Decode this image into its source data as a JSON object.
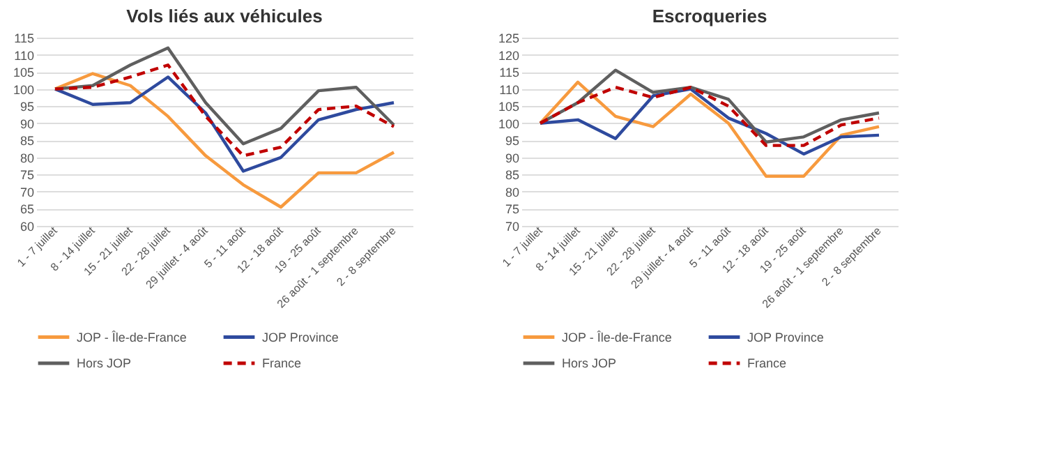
{
  "chart_data": [
    {
      "type": "line",
      "title": "Vols liés aux véhicules",
      "categories": [
        "1 - 7 juillet",
        "8 - 14 juillet",
        "15 - 21 juillet",
        "22 - 28 juillet",
        "29 juillet - 4 août",
        "5 - 11 août",
        "12 - 18 août",
        "19 - 25 août",
        "26 août - 1 septembre",
        "2 - 8 septembre"
      ],
      "ylim": [
        60,
        115
      ],
      "yticks": [
        60,
        65,
        70,
        75,
        80,
        85,
        90,
        95,
        100,
        105,
        110,
        115
      ],
      "grid": "y",
      "legend": "bottom",
      "marker": "none",
      "series": [
        {
          "name": "JOP - Île-de-France",
          "color": "#f79a3e",
          "line_style": "solid",
          "values": [
            100,
            104.5,
            101,
            92,
            80.5,
            72,
            65.5,
            75.5,
            75.5,
            81.5
          ]
        },
        {
          "name": "JOP Province",
          "color": "#2e4a9e",
          "line_style": "solid",
          "values": [
            100,
            95.5,
            96,
            103.5,
            93,
            76,
            80,
            91,
            94,
            96
          ]
        },
        {
          "name": "Hors JOP",
          "color": "#5f5f5f",
          "line_style": "solid",
          "values": [
            100,
            101,
            107,
            112,
            96,
            84,
            88.5,
            99.5,
            100.5,
            89.5
          ]
        },
        {
          "name": "France",
          "color": "#c00000",
          "line_style": "dashed",
          "values": [
            100,
            100.5,
            103.5,
            107,
            92,
            80.5,
            83,
            94,
            95,
            89
          ]
        }
      ]
    },
    {
      "type": "line",
      "title": "Escroqueries",
      "categories": [
        "1 - 7 juillet",
        "8 - 14 juillet",
        "15 - 21 juillet",
        "22 - 28 juillet",
        "29 juillet - 4 août",
        "5 - 11 août",
        "12 - 18 août",
        "19 - 25 août",
        "26 août - 1 septembre",
        "2 - 8 septembre"
      ],
      "ylim": [
        70,
        125
      ],
      "yticks": [
        70,
        75,
        80,
        85,
        90,
        95,
        100,
        105,
        110,
        115,
        120,
        125
      ],
      "grid": "y",
      "legend": "bottom",
      "marker": "none",
      "series": [
        {
          "name": "JOP - Île-de-France",
          "color": "#f79a3e",
          "line_style": "solid",
          "values": [
            100,
            112,
            102,
            99,
            108.5,
            100,
            84.5,
            84.5,
            96.5,
            99
          ]
        },
        {
          "name": "JOP Province",
          "color": "#2e4a9e",
          "line_style": "solid",
          "values": [
            100,
            101,
            95.5,
            108,
            110,
            101.5,
            97,
            91,
            96,
            96.5
          ]
        },
        {
          "name": "Hors JOP",
          "color": "#5f5f5f",
          "line_style": "solid",
          "values": [
            100,
            106,
            115.5,
            109,
            110.5,
            107,
            94.5,
            96,
            101,
            103
          ]
        },
        {
          "name": "France",
          "color": "#c00000",
          "line_style": "dashed",
          "values": [
            100,
            106,
            110.5,
            107.5,
            110.5,
            105,
            93.5,
            93.5,
            99.5,
            101.5
          ]
        }
      ]
    }
  ]
}
